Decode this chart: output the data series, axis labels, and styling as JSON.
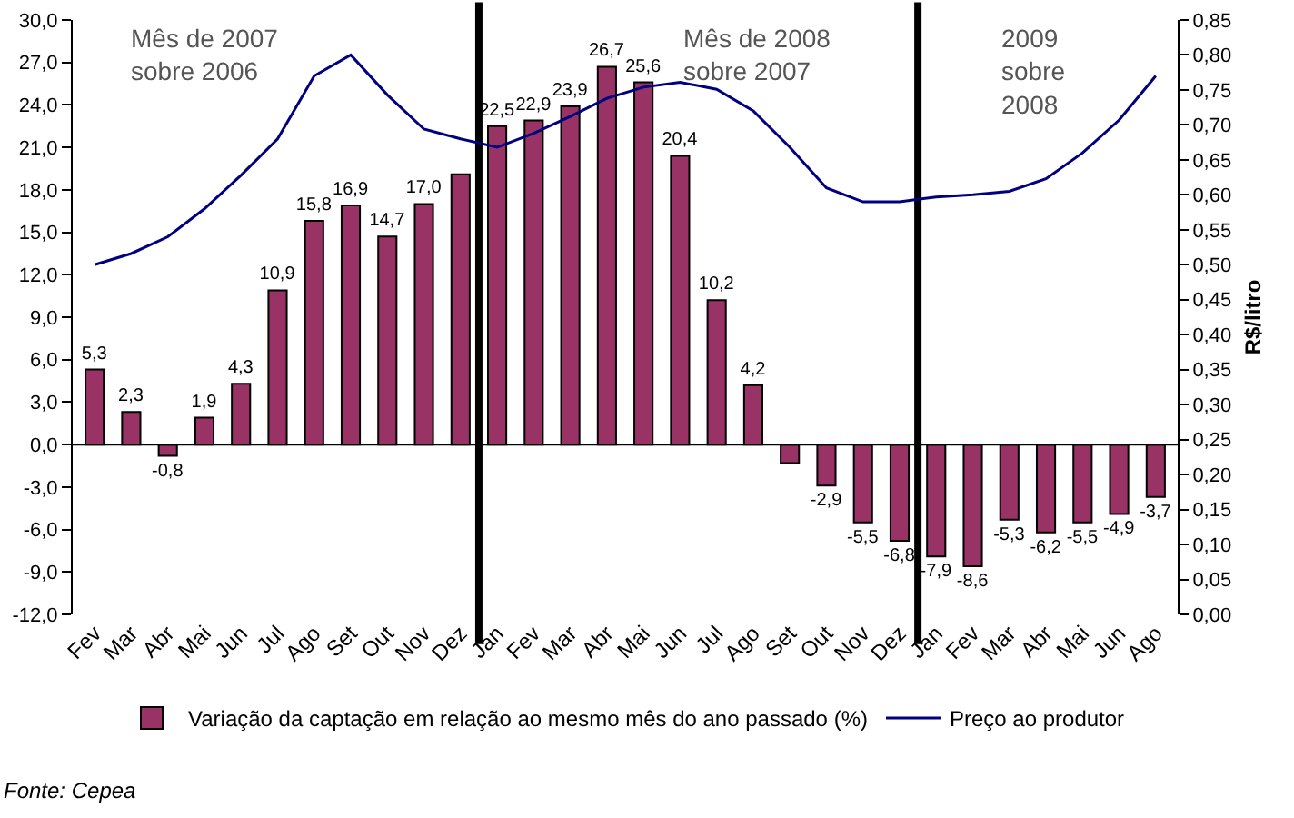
{
  "chart_data": {
    "type": "bar",
    "categories": [
      "Fev",
      "Mar",
      "Abr",
      "Mai",
      "Jun",
      "Jul",
      "Ago",
      "Set",
      "Out",
      "Nov",
      "Dez",
      "Jan",
      "Fev",
      "Mar",
      "Abr",
      "Mai",
      "Jun",
      "Jul",
      "Ago",
      "Set",
      "Out",
      "Nov",
      "Dez",
      "Jan",
      "Fev",
      "Mar",
      "Abr",
      "Mai",
      "Jun",
      "Ago"
    ],
    "series": [
      {
        "name": "Variação da captação em relação ao mesmo mês do ano passado (%)",
        "color": "#993366",
        "values": [
          5.3,
          2.3,
          -0.8,
          1.9,
          4.3,
          10.9,
          15.8,
          16.9,
          14.7,
          17.0,
          19.1,
          22.5,
          22.9,
          23.9,
          26.7,
          25.6,
          20.4,
          10.2,
          4.2,
          -1.3,
          -2.9,
          -5.5,
          -6.8,
          -7.9,
          -8.6,
          -5.3,
          -6.2,
          -5.5,
          -4.9,
          -3.7
        ],
        "value_labels": [
          "5,3",
          "2,3",
          "-0,8",
          "1,9",
          "4,3",
          "10,9",
          "15,8",
          "16,9",
          "14,7",
          "17,0",
          null,
          "22,5",
          "22,9",
          "23,9",
          "26,7",
          "25,6",
          "20,4",
          "10,2",
          "4,2",
          null,
          "-2,9",
          "-5,5",
          "-6,8",
          "-7,9",
          "-8,6",
          "-5,3",
          "-6,2",
          "-5,5",
          "-4,9",
          "-3,7"
        ]
      },
      {
        "name": "Preço ao produtor",
        "type": "line",
        "axis": "y2",
        "color": "#000080",
        "values": [
          0.5,
          0.516,
          0.54,
          0.58,
          0.628,
          0.68,
          0.77,
          0.8,
          0.743,
          0.694,
          0.68,
          0.668,
          0.688,
          0.712,
          0.738,
          0.754,
          0.761,
          0.751,
          0.72,
          0.668,
          0.61,
          0.59,
          0.59,
          0.597,
          0.6,
          0.605,
          0.623,
          0.66,
          0.707,
          0.77
        ]
      }
    ],
    "ylim": [
      -12,
      30
    ],
    "yticks": [
      {
        "value": -12,
        "label": "-12,0"
      },
      {
        "value": -9,
        "label": "-9,0"
      },
      {
        "value": -6,
        "label": "-6,0"
      },
      {
        "value": -3,
        "label": "-3,0"
      },
      {
        "value": 0,
        "label": "0,0"
      },
      {
        "value": 3,
        "label": "3,0"
      },
      {
        "value": 6,
        "label": "6,0"
      },
      {
        "value": 9,
        "label": "9,0"
      },
      {
        "value": 12,
        "label": "12,0"
      },
      {
        "value": 15,
        "label": "15,0"
      },
      {
        "value": 18,
        "label": "18,0"
      },
      {
        "value": 21,
        "label": "21,0"
      },
      {
        "value": 24,
        "label": "24,0"
      },
      {
        "value": 27,
        "label": "27,0"
      },
      {
        "value": 30,
        "label": "30,0"
      }
    ],
    "y2lim": [
      0,
      0.85
    ],
    "y2ticks": [
      {
        "value": 0,
        "label": "0,00"
      },
      {
        "value": 0.05,
        "label": "0,05"
      },
      {
        "value": 0.1,
        "label": "0,10"
      },
      {
        "value": 0.15,
        "label": "0,15"
      },
      {
        "value": 0.2,
        "label": "0,20"
      },
      {
        "value": 0.25,
        "label": "0,25"
      },
      {
        "value": 0.3,
        "label": "0,30"
      },
      {
        "value": 0.35,
        "label": "0,35"
      },
      {
        "value": 0.4,
        "label": "0,40"
      },
      {
        "value": 0.45,
        "label": "0,45"
      },
      {
        "value": 0.5,
        "label": "0,50"
      },
      {
        "value": 0.55,
        "label": "0,55"
      },
      {
        "value": 0.6,
        "label": "0,60"
      },
      {
        "value": 0.65,
        "label": "0,65"
      },
      {
        "value": 0.7,
        "label": "0,70"
      },
      {
        "value": 0.75,
        "label": "0,75"
      },
      {
        "value": 0.8,
        "label": "0,80"
      },
      {
        "value": 0.85,
        "label": "0,85"
      }
    ],
    "y2label": "R$/litro",
    "annotations": [
      "Mês de 2007\nsobre 2006",
      "Mês de 2008\nsobre 2007",
      "2009\nsobre\n2008",
      "Fonte: Cepea"
    ],
    "grid": false,
    "legend": "bottom",
    "marker": "none"
  }
}
